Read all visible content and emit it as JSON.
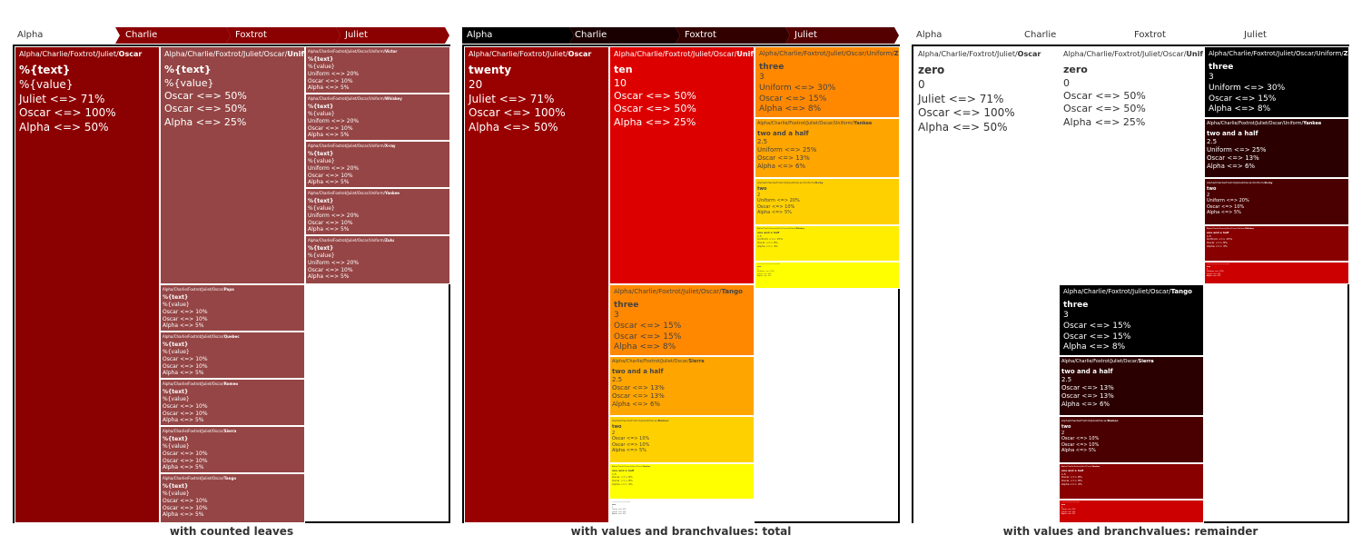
{
  "breadcrumb_labels": [
    "Alpha",
    "Charlie",
    "Foxtrot",
    "Juliet"
  ],
  "colors": {
    "panel1_fill": "#8b0000",
    "panel1_children": "#954545",
    "panel2_red": "#990000",
    "panel2_scale": [
      "#990000",
      "#dd0000",
      "#ff8800",
      "#ffcc00",
      "#ffff00",
      "#ffffff"
    ],
    "panel3_scale": [
      "#000000",
      "#330000",
      "#660000",
      "#aa0000",
      "#dd0000",
      "#ffffff"
    ]
  },
  "chart_data": [
    {
      "type": "treemap",
      "title": "with counted leaves",
      "breadcrumb": [
        "Alpha",
        "Charlie",
        "Foxtrot",
        "Juliet"
      ],
      "root": {
        "path": "Alpha/Charlie/Foxtrot/Juliet/",
        "name": "Oscar",
        "lines": [
          "%{text}",
          "%{value}",
          "Juliet <=> 71%",
          "Oscar <=> 100%",
          "Alpha <=> 50%"
        ]
      },
      "tiles": [
        {
          "path": "Alpha/Charlie/Foxtrot/Juliet/Oscar/",
          "name": "Uniform",
          "lines": [
            "%{text}",
            "%{value}",
            "Oscar <=> 50%",
            "Oscar <=> 50%",
            "Alpha <=> 25%"
          ]
        },
        {
          "path": "Alpha/Charlie/Foxtrot/Juliet/Oscar/Uniform/",
          "name": "Victor",
          "lines": [
            "%{text}",
            "%{value}",
            "Uniform <=> 20%",
            "Oscar <=> 10%",
            "Alpha <=> 5%"
          ]
        },
        {
          "path": "Alpha/Charlie/Foxtrot/Juliet/Oscar/Uniform/",
          "name": "Whiskey",
          "lines": [
            "%{text}",
            "%{value}",
            "Uniform <=> 20%",
            "Oscar <=> 10%",
            "Alpha <=> 5%"
          ]
        },
        {
          "path": "Alpha/Charlie/Foxtrot/Juliet/Oscar/Uniform/",
          "name": "X-ray",
          "lines": [
            "%{text}",
            "%{value}",
            "Uniform <=> 20%",
            "Oscar <=> 10%",
            "Alpha <=> 5%"
          ]
        },
        {
          "path": "Alpha/Charlie/Foxtrot/Juliet/Oscar/Uniform/",
          "name": "Yankee",
          "lines": [
            "%{text}",
            "%{value}",
            "Uniform <=> 20%",
            "Oscar <=> 10%",
            "Alpha <=> 5%"
          ]
        },
        {
          "path": "Alpha/Charlie/Foxtrot/Juliet/Oscar/Uniform/",
          "name": "Zulu",
          "lines": [
            "%{text}",
            "%{value}",
            "Uniform <=> 20%",
            "Oscar <=> 10%",
            "Alpha <=> 5%"
          ]
        },
        {
          "path": "Alpha/Charlie/Foxtrot/Juliet/Oscar/",
          "name": "Papa",
          "lines": [
            "%{text}",
            "%{value}",
            "Oscar <=> 10%",
            "Oscar <=> 10%",
            "Alpha <=> 5%"
          ]
        },
        {
          "path": "Alpha/Charlie/Foxtrot/Juliet/Oscar/",
          "name": "Quebec",
          "lines": [
            "%{text}",
            "%{value}",
            "Oscar <=> 10%",
            "Oscar <=> 10%",
            "Alpha <=> 5%"
          ]
        },
        {
          "path": "Alpha/Charlie/Foxtrot/Juliet/Oscar/",
          "name": "Romeo",
          "lines": [
            "%{text}",
            "%{value}",
            "Oscar <=> 10%",
            "Oscar <=> 10%",
            "Alpha <=> 5%"
          ]
        },
        {
          "path": "Alpha/Charlie/Foxtrot/Juliet/Oscar/",
          "name": "Sierra",
          "lines": [
            "%{text}",
            "%{value}",
            "Oscar <=> 10%",
            "Oscar <=> 10%",
            "Alpha <=> 5%"
          ]
        },
        {
          "path": "Alpha/Charlie/Foxtrot/Juliet/Oscar/",
          "name": "Tango",
          "lines": [
            "%{text}",
            "%{value}",
            "Oscar <=> 10%",
            "Oscar <=> 10%",
            "Alpha <=> 5%"
          ]
        }
      ]
    },
    {
      "type": "treemap",
      "title": "with values and branchvalues: total",
      "breadcrumb": [
        "Alpha",
        "Charlie",
        "Foxtrot",
        "Juliet"
      ],
      "root": {
        "path": "Alpha/Charlie/Foxtrot/Juliet/",
        "name": "Oscar",
        "lines": [
          "twenty",
          "20",
          "Juliet <=> 71%",
          "Oscar <=> 100%",
          "Alpha <=> 50%"
        ]
      },
      "tiles": [
        {
          "path": "Alpha/Charlie/Foxtrot/Juliet/Oscar/",
          "name": "Uniform",
          "value": 10,
          "lines": [
            "ten",
            "10",
            "Oscar <=> 50%",
            "Oscar <=> 50%",
            "Alpha <=> 25%"
          ]
        },
        {
          "path": "Alpha/Charlie/Foxtrot/Juliet/Oscar/Uniform/",
          "name": "Zulu",
          "value": 3,
          "lines": [
            "three",
            "3",
            "Uniform <=> 30%",
            "Oscar <=> 15%",
            "Alpha <=> 8%"
          ]
        },
        {
          "path": "Alpha/Charlie/Foxtrot/Juliet/Oscar/Uniform/",
          "name": "Yankee",
          "value": 2.5,
          "lines": [
            "two and a half",
            "2.5",
            "Uniform <=> 25%",
            "Oscar <=> 13%",
            "Alpha <=> 6%"
          ]
        },
        {
          "path": "Alpha/Charlie/Foxtrot/Juliet/Oscar/Uniform/",
          "name": "X-ray",
          "value": 2,
          "lines": [
            "two",
            "2",
            "Uniform <=> 20%",
            "Oscar <=> 10%",
            "Alpha <=> 5%"
          ]
        },
        {
          "path": "Alpha/Charlie/Foxtrot/Juliet/Oscar/Uniform/",
          "name": "Whiskey",
          "value": 1.5,
          "lines": [
            "one and a half",
            "1.5",
            "Uniform <=> 15%",
            "Oscar <=> 8%",
            "Alpha <=> 4%"
          ]
        },
        {
          "path": "Alpha/Charlie/Foxtrot/Juliet/Oscar/Uniform/",
          "name": "Victor",
          "value": 1,
          "lines": [
            "one",
            "1",
            "Uniform <=> 10%",
            "Oscar <=> 5%",
            "Alpha <=> 3%"
          ]
        },
        {
          "path": "Alpha/Charlie/Foxtrot/Juliet/Oscar/",
          "name": "Tango",
          "value": 3,
          "lines": [
            "three",
            "3",
            "Oscar <=> 15%",
            "Oscar <=> 15%",
            "Alpha <=> 8%"
          ]
        },
        {
          "path": "Alpha/Charlie/Foxtrot/Juliet/Oscar/",
          "name": "Sierra",
          "value": 2.5,
          "lines": [
            "two and a half",
            "2.5",
            "Oscar <=> 13%",
            "Oscar <=> 13%",
            "Alpha <=> 6%"
          ]
        },
        {
          "path": "Alpha/Charlie/Foxtrot/Juliet/Oscar/",
          "name": "Romeo",
          "value": 2,
          "lines": [
            "two",
            "2",
            "Oscar <=> 10%",
            "Oscar <=> 10%",
            "Alpha <=> 5%"
          ]
        },
        {
          "path": "Alpha/Charlie/Foxtrot/Juliet/Oscar/",
          "name": "Quebec",
          "value": 1.5,
          "lines": [
            "one and a half",
            "1.5",
            "Oscar <=> 8%",
            "Oscar <=> 8%",
            "Alpha <=> 4%"
          ]
        },
        {
          "path": "Alpha/Charlie/Foxtrot/Juliet/Oscar/",
          "name": "Papa",
          "value": 1,
          "lines": [
            "one",
            "1",
            "Oscar <=> 5%",
            "Oscar <=> 5%",
            "Alpha <=> 3%"
          ]
        }
      ]
    },
    {
      "type": "treemap",
      "title": "with values and branchvalues: remainder",
      "breadcrumb": [
        "Alpha",
        "Charlie",
        "Foxtrot",
        "Juliet"
      ],
      "root": {
        "path": "Alpha/Charlie/Foxtrot/Juliet/",
        "name": "Oscar",
        "lines": [
          "zero",
          "0",
          "Juliet <=> 71%",
          "Oscar <=> 100%",
          "Alpha <=> 50%"
        ]
      },
      "tiles": [
        {
          "path": "Alpha/Charlie/Foxtrot/Juliet/Oscar/",
          "name": "Uniform",
          "value": 0,
          "lines": [
            "zero",
            "0",
            "Oscar <=> 50%",
            "Oscar <=> 50%",
            "Alpha <=> 25%"
          ]
        },
        {
          "path": "Alpha/Charlie/Foxtrot/Juliet/Oscar/Uniform/",
          "name": "Zulu",
          "value": 3,
          "lines": [
            "three",
            "3",
            "Uniform <=> 30%",
            "Oscar <=> 15%",
            "Alpha <=> 8%"
          ]
        },
        {
          "path": "Alpha/Charlie/Foxtrot/Juliet/Oscar/Uniform/",
          "name": "Yankee",
          "value": 2.5,
          "lines": [
            "two and a half",
            "2.5",
            "Uniform <=> 25%",
            "Oscar <=> 13%",
            "Alpha <=> 6%"
          ]
        },
        {
          "path": "Alpha/Charlie/Foxtrot/Juliet/Oscar/Uniform/",
          "name": "X-ray",
          "value": 2,
          "lines": [
            "two",
            "2",
            "Uniform <=> 20%",
            "Oscar <=> 10%",
            "Alpha <=> 5%"
          ]
        },
        {
          "path": "Alpha/Charlie/Foxtrot/Juliet/Oscar/Uniform/",
          "name": "Whiskey",
          "value": 1.5,
          "lines": [
            "one and a half",
            "1.5",
            "Uniform <=> 15%",
            "Oscar <=> 8%",
            "Alpha <=> 4%"
          ]
        },
        {
          "path": "Alpha/Charlie/Foxtrot/Juliet/Oscar/Uniform/",
          "name": "Victor",
          "value": 1,
          "lines": [
            "one",
            "1",
            "Uniform <=> 10%",
            "Oscar <=> 5%",
            "Alpha <=> 3%"
          ]
        },
        {
          "path": "Alpha/Charlie/Foxtrot/Juliet/Oscar/",
          "name": "Tango",
          "value": 3,
          "lines": [
            "three",
            "3",
            "Oscar <=> 15%",
            "Oscar <=> 15%",
            "Alpha <=> 8%"
          ]
        },
        {
          "path": "Alpha/Charlie/Foxtrot/Juliet/Oscar/",
          "name": "Sierra",
          "value": 2.5,
          "lines": [
            "two and a half",
            "2.5",
            "Oscar <=> 13%",
            "Oscar <=> 13%",
            "Alpha <=> 6%"
          ]
        },
        {
          "path": "Alpha/Charlie/Foxtrot/Juliet/Oscar/",
          "name": "Romeo",
          "value": 2,
          "lines": [
            "two",
            "2",
            "Oscar <=> 10%",
            "Oscar <=> 10%",
            "Alpha <=> 5%"
          ]
        },
        {
          "path": "Alpha/Charlie/Foxtrot/Juliet/Oscar/",
          "name": "Quebec",
          "value": 1.5,
          "lines": [
            "one and a half",
            "1.5",
            "Oscar <=> 8%",
            "Oscar <=> 8%",
            "Alpha <=> 4%"
          ]
        },
        {
          "path": "Alpha/Charlie/Foxtrot/Juliet/Oscar/",
          "name": "Papa",
          "value": 1,
          "lines": [
            "one",
            "1",
            "Oscar <=> 5%",
            "Oscar <=> 5%",
            "Alpha <=> 3%"
          ]
        }
      ]
    }
  ]
}
